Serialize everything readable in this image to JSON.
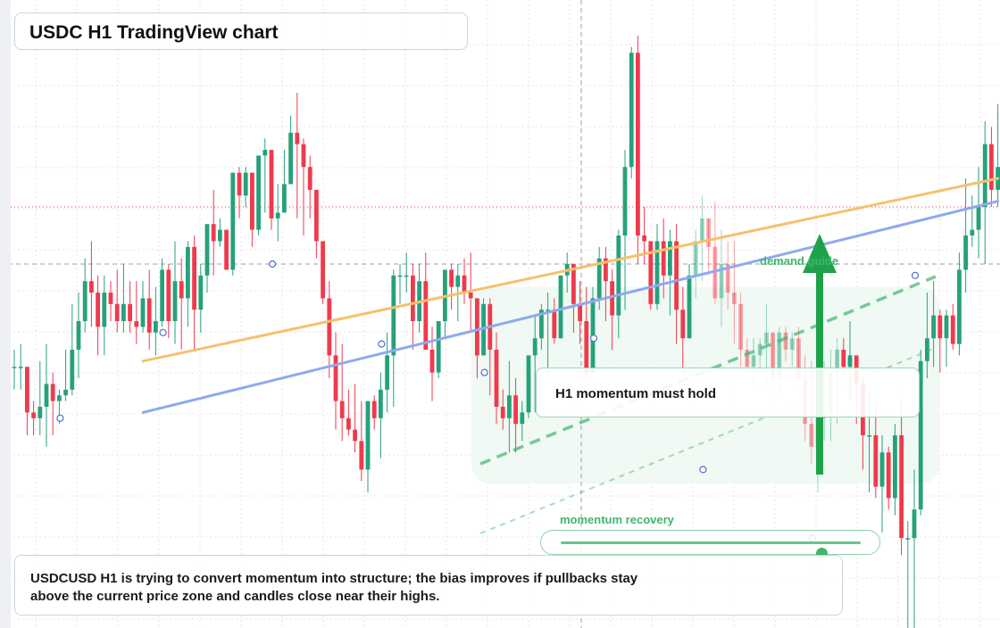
{
  "title": "USDC H1 TradingView chart",
  "caption": "USDCUSD H1 is trying to convert momentum into structure; the bias improves if pullbacks stay above the current price zone and candles close near their highs.",
  "callout": "H1 momentum must hold",
  "demand_label": "demand guide",
  "momentum_label": "momentum recovery",
  "momentum_level": 0.87,
  "colors": {
    "up": "#26a17b",
    "down": "#ef3a4c",
    "orange_line": "#f5c16c",
    "blue_line": "#8fa9ef",
    "green_accent": "#3fb66c",
    "arrow": "#1ea14a"
  },
  "chart_data": {
    "type": "candlestick",
    "x_axis": "bar index (H1)",
    "y_axis": "price (unlabeled)",
    "y_range": [
      0,
      100
    ],
    "grid": true,
    "candles": [
      [
        42,
        45,
        38,
        42
      ],
      [
        42,
        46,
        38,
        42
      ],
      [
        42,
        41,
        30,
        34
      ],
      [
        34,
        36,
        30,
        33
      ],
      [
        33,
        43,
        30,
        35
      ],
      [
        35,
        46,
        28,
        39
      ],
      [
        39,
        41,
        30,
        36
      ],
      [
        36,
        38,
        32,
        37
      ],
      [
        37,
        45,
        36,
        38
      ],
      [
        38,
        53,
        37,
        45
      ],
      [
        45,
        55,
        40,
        50
      ],
      [
        50,
        61,
        48,
        57
      ],
      [
        57,
        64,
        49,
        55
      ],
      [
        55,
        58,
        44,
        49
      ],
      [
        49,
        58,
        44,
        55
      ],
      [
        55,
        57,
        50,
        53
      ],
      [
        53,
        59,
        48,
        50
      ],
      [
        50,
        60,
        48,
        53
      ],
      [
        53,
        57,
        48,
        50
      ],
      [
        50,
        57,
        46,
        49
      ],
      [
        49,
        57,
        48,
        54
      ],
      [
        54,
        59,
        45,
        48
      ],
      [
        48,
        56,
        44,
        50
      ],
      [
        50,
        61,
        49,
        59
      ],
      [
        59,
        60,
        47,
        50
      ],
      [
        50,
        64,
        46,
        57
      ],
      [
        57,
        61,
        45,
        54
      ],
      [
        54,
        64,
        49,
        63
      ],
      [
        63,
        65,
        45,
        52
      ],
      [
        52,
        60,
        48,
        58
      ],
      [
        58,
        67,
        55,
        67
      ],
      [
        67,
        73,
        58,
        64
      ],
      [
        64,
        68,
        63,
        66
      ],
      [
        66,
        66,
        59,
        59
      ],
      [
        59,
        76,
        58,
        76
      ],
      [
        76,
        77,
        68,
        72
      ],
      [
        72,
        77,
        70,
        76
      ],
      [
        76,
        76,
        63,
        66
      ],
      [
        66,
        79,
        65,
        79
      ],
      [
        79,
        82,
        69,
        80
      ],
      [
        80,
        80,
        66,
        68
      ],
      [
        68,
        74,
        64,
        69
      ],
      [
        69,
        80,
        69,
        74
      ],
      [
        74,
        86,
        74,
        83
      ],
      [
        83,
        90,
        68,
        81
      ],
      [
        81,
        82,
        65,
        77
      ],
      [
        77,
        79,
        68,
        73
      ],
      [
        73,
        73,
        61,
        64
      ],
      [
        64,
        64,
        53,
        54
      ],
      [
        54,
        57,
        40,
        44
      ],
      [
        44,
        48,
        31,
        36
      ],
      [
        36,
        46,
        29,
        33
      ],
      [
        33,
        38,
        30,
        31
      ],
      [
        31,
        39,
        27,
        29
      ],
      [
        29,
        36,
        22,
        24
      ],
      [
        24,
        36,
        20,
        36
      ],
      [
        36,
        37,
        31,
        33
      ],
      [
        33,
        41,
        26,
        38
      ],
      [
        38,
        48,
        34,
        44
      ],
      [
        44,
        59,
        35,
        58
      ],
      [
        58,
        60,
        53,
        58
      ],
      [
        58,
        62,
        55,
        58
      ],
      [
        58,
        60,
        45,
        50
      ],
      [
        50,
        60,
        48,
        57
      ],
      [
        57,
        62,
        45,
        45
      ],
      [
        45,
        49,
        36,
        41
      ],
      [
        41,
        50,
        40,
        50
      ],
      [
        50,
        59,
        47,
        59
      ],
      [
        59,
        60,
        52,
        56
      ],
      [
        56,
        60,
        50,
        58
      ],
      [
        58,
        61,
        53,
        55
      ],
      [
        55,
        62,
        48,
        54
      ],
      [
        54,
        54,
        40,
        44
      ],
      [
        44,
        54,
        44,
        53
      ],
      [
        53,
        54,
        37,
        45
      ],
      [
        45,
        48,
        32,
        35
      ],
      [
        35,
        38,
        31,
        33
      ],
      [
        33,
        43,
        27,
        37
      ],
      [
        37,
        40,
        27,
        32
      ],
      [
        32,
        36,
        29,
        34
      ],
      [
        34,
        44,
        33,
        44
      ],
      [
        44,
        51,
        34,
        47
      ],
      [
        47,
        53,
        45,
        52
      ],
      [
        52,
        55,
        41,
        52
      ],
      [
        52,
        54,
        46,
        47
      ],
      [
        47,
        58,
        47,
        58
      ],
      [
        58,
        62,
        55,
        60
      ],
      [
        60,
        60,
        48,
        53
      ],
      [
        53,
        57,
        46,
        50
      ],
      [
        50,
        56,
        40,
        41
      ],
      [
        41,
        56,
        41,
        54
      ],
      [
        54,
        63,
        52,
        61
      ],
      [
        61,
        63,
        50,
        57
      ],
      [
        57,
        59,
        45,
        51
      ],
      [
        51,
        66,
        47,
        65
      ],
      [
        65,
        80,
        52,
        77
      ],
      [
        77,
        98,
        75,
        97
      ],
      [
        97,
        100,
        60,
        65
      ],
      [
        65,
        70,
        60,
        64
      ],
      [
        64,
        64,
        52,
        53
      ],
      [
        53,
        67,
        52,
        64
      ],
      [
        64,
        68,
        54,
        58
      ],
      [
        58,
        66,
        51,
        64
      ],
      [
        64,
        67,
        46,
        52
      ],
      [
        52,
        56,
        41,
        47
      ],
      [
        47,
        60,
        47,
        58
      ],
      [
        58,
        66,
        54,
        64
      ],
      [
        64,
        72,
        57,
        68
      ],
      [
        68,
        68,
        58,
        63
      ],
      [
        63,
        71,
        53,
        54
      ],
      [
        54,
        66,
        49,
        60
      ],
      [
        60,
        64,
        52,
        55
      ],
      [
        55,
        64,
        46,
        53
      ],
      [
        53,
        55,
        42,
        45
      ],
      [
        45,
        47,
        41,
        42
      ],
      [
        42,
        47,
        38,
        44
      ],
      [
        44,
        47,
        40,
        46
      ],
      [
        46,
        53,
        38,
        48
      ],
      [
        48,
        48,
        39,
        40
      ],
      [
        40,
        49,
        37,
        48
      ],
      [
        48,
        49,
        43,
        45
      ],
      [
        45,
        48,
        42,
        47
      ],
      [
        47,
        49,
        39,
        40
      ],
      [
        40,
        44,
        29,
        32
      ],
      [
        32,
        43,
        25,
        28
      ],
      [
        28,
        34,
        20,
        33
      ],
      [
        33,
        43,
        29,
        34
      ],
      [
        34,
        45,
        29,
        41
      ],
      [
        41,
        47,
        32,
        45
      ],
      [
        45,
        47,
        41,
        42
      ],
      [
        42,
        50,
        36,
        44
      ],
      [
        44,
        44,
        32,
        39
      ],
      [
        39,
        40,
        24,
        30
      ],
      [
        30,
        38,
        20,
        30
      ],
      [
        30,
        36,
        19,
        21
      ],
      [
        21,
        30,
        13,
        27
      ],
      [
        27,
        28,
        17,
        19
      ],
      [
        19,
        32,
        16,
        30
      ],
      [
        30,
        36,
        9,
        12
      ],
      [
        12,
        15,
        -6,
        12
      ],
      [
        12,
        24,
        -4,
        17
      ],
      [
        17,
        45,
        16,
        43
      ],
      [
        43,
        55,
        40,
        47
      ],
      [
        47,
        57,
        42,
        51
      ],
      [
        51,
        52,
        41,
        47
      ],
      [
        47,
        52,
        42,
        51
      ],
      [
        51,
        53,
        45,
        46
      ],
      [
        46,
        62,
        44,
        59
      ],
      [
        59,
        75,
        55,
        65
      ],
      [
        65,
        72,
        63,
        66
      ],
      [
        66,
        77,
        61,
        70
      ],
      [
        70,
        85,
        60,
        81
      ],
      [
        81,
        84,
        70,
        73
      ],
      [
        73,
        88,
        70,
        77
      ],
      [
        77,
        86,
        70,
        84
      ],
      [
        84,
        91,
        76,
        86
      ],
      [
        86,
        95,
        78,
        93
      ],
      [
        93,
        93,
        79,
        81
      ],
      [
        81,
        89,
        79,
        84
      ],
      [
        84,
        97,
        68,
        74
      ]
    ],
    "trend_lines": [
      {
        "name": "orange",
        "from": [
          20,
          43
        ],
        "to": [
          153,
          75
        ]
      },
      {
        "name": "blue",
        "from": [
          20,
          34
        ],
        "to": [
          153,
          71
        ]
      }
    ],
    "current_price": 70,
    "reference_level": 60
  }
}
